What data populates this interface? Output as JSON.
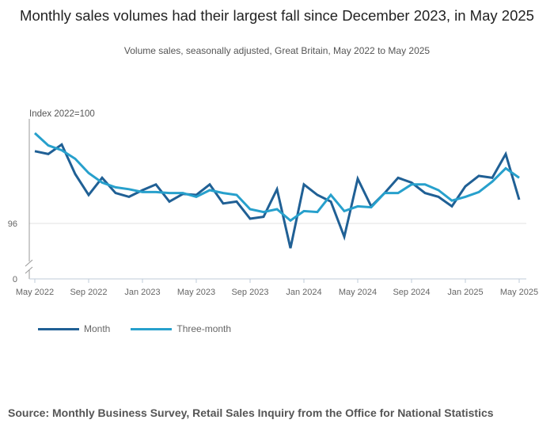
{
  "header": {
    "title": "Monthly sales volumes had their largest fall since December 2023, in May 2025",
    "subtitle": "Volume sales, seasonally adjusted, Great Britain, May 2022 to May 2025"
  },
  "source": "Source: Monthly Business Survey, Retail Sales Inquiry from the Office for National Statistics",
  "colors": {
    "month": "#206095",
    "three_month": "#27a0cc",
    "gridline": "#e0e0e0",
    "axis": "#bfcbd9"
  },
  "chart_data": {
    "type": "line",
    "title": "Monthly sales volumes had their largest fall since December 2023, in May 2025",
    "subtitle": "Volume sales, seasonally adjusted, Great Britain, May 2022 to May 2025",
    "ylabel": "Index 2022=100",
    "xlabel": "",
    "ylim": [
      93,
      107
    ],
    "y_axis_break": true,
    "y_ticks": [
      0,
      96
    ],
    "y_tick_labels": [
      "0",
      "96"
    ],
    "grid": "horizontal at 96",
    "legend_position": "bottom-left",
    "x_tick_labels": [
      "May 2022",
      "Sep 2022",
      "Jan 2023",
      "May 2023",
      "Sep 2023",
      "Jan 2024",
      "May 2024",
      "Sep 2024",
      "Jan 2025",
      "May 2025"
    ],
    "x_tick_every": 4,
    "x": [
      "May 2022",
      "Jun 2022",
      "Jul 2022",
      "Aug 2022",
      "Sep 2022",
      "Oct 2022",
      "Nov 2022",
      "Dec 2022",
      "Jan 2023",
      "Feb 2023",
      "Mar 2023",
      "Apr 2023",
      "May 2023",
      "Jun 2023",
      "Jul 2023",
      "Aug 2023",
      "Sep 2023",
      "Oct 2023",
      "Nov 2023",
      "Dec 2023",
      "Jan 2024",
      "Feb 2024",
      "Mar 2024",
      "Apr 2024",
      "May 2024",
      "Jun 2024",
      "Jul 2024",
      "Aug 2024",
      "Sep 2024",
      "Oct 2024",
      "Nov 2024",
      "Dec 2024",
      "Jan 2025",
      "Feb 2025",
      "Mar 2025",
      "Apr 2025",
      "May 2025"
    ],
    "series": [
      {
        "name": "Month",
        "key": "month",
        "values": [
          103.6,
          103.3,
          104.3,
          101.2,
          99.0,
          100.8,
          99.2,
          98.8,
          99.5,
          100.1,
          98.3,
          99.1,
          99.0,
          100.1,
          98.1,
          98.3,
          96.5,
          96.7,
          99.6,
          93.4,
          100.1,
          99.0,
          98.3,
          94.6,
          100.7,
          97.8,
          99.2,
          100.8,
          100.3,
          99.2,
          98.8,
          97.8,
          99.9,
          101.0,
          100.8,
          103.3,
          98.5
        ]
      },
      {
        "name": "Three-month",
        "key": "three_month",
        "values": [
          105.5,
          104.2,
          103.7,
          102.8,
          101.3,
          100.3,
          99.8,
          99.6,
          99.3,
          99.3,
          99.2,
          99.2,
          98.8,
          99.5,
          99.2,
          99.0,
          97.5,
          97.2,
          97.5,
          96.3,
          97.3,
          97.2,
          99.0,
          97.3,
          97.8,
          97.7,
          99.2,
          99.2,
          100.1,
          100.1,
          99.5,
          98.4,
          98.8,
          99.3,
          100.4,
          101.8,
          100.8
        ]
      }
    ]
  }
}
